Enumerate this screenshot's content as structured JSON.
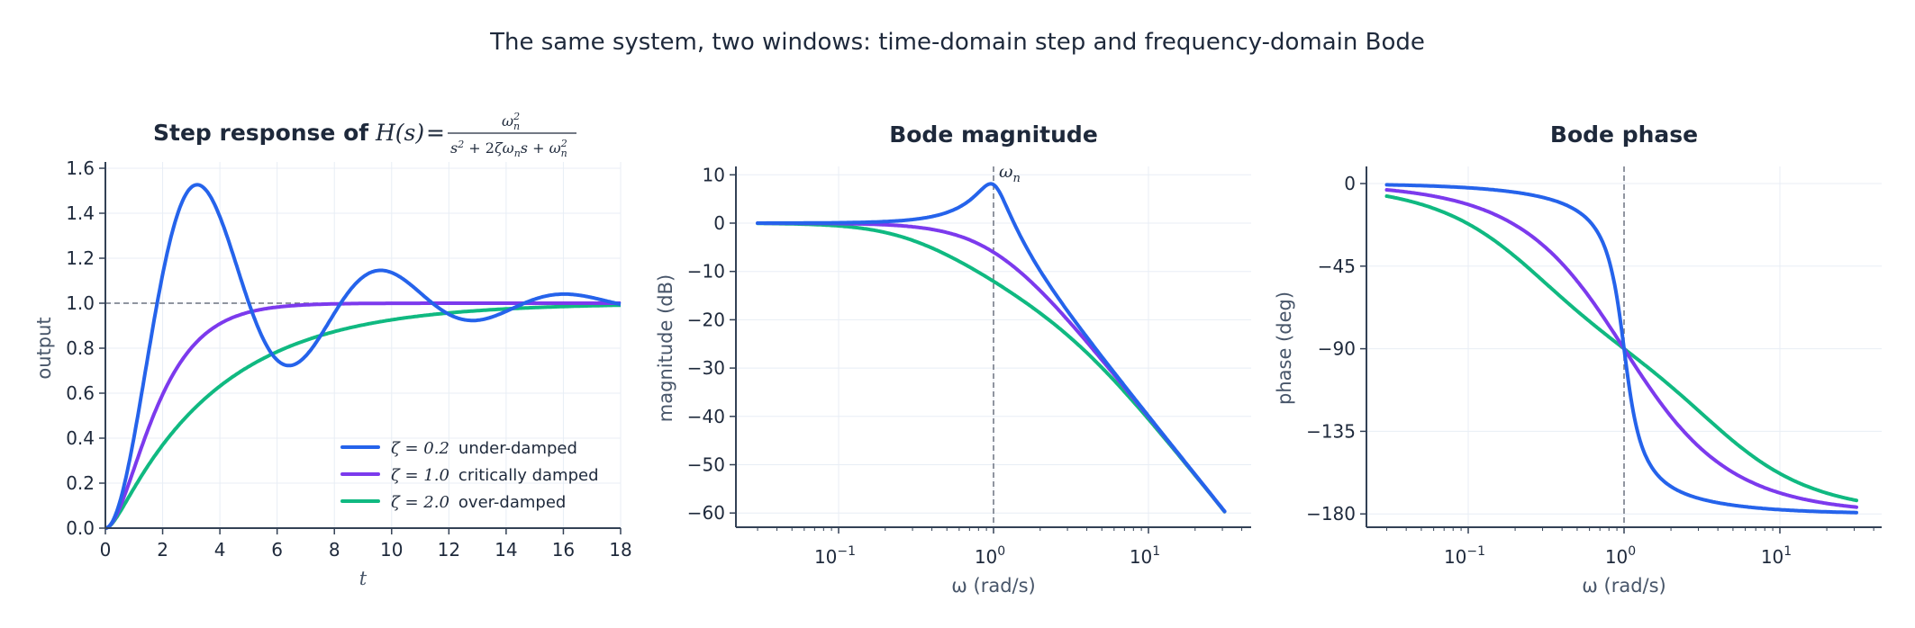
{
  "figure": {
    "suptitle": "The same system, two windows: time-domain step and frequency-domain Bode"
  },
  "colors": {
    "zeta_0_2": "#2563eb",
    "zeta_1_0": "#7c3aed",
    "zeta_2_0": "#10b981",
    "axis": "#334155",
    "grid": "#e8eef5",
    "reference": "#6b7280"
  },
  "chart_data": [
    {
      "type": "line",
      "title": "Step response of H(s) = ωn² / (s² + 2ζωn s + ωn²)",
      "title_prefix": "Step response of ",
      "xlabel": "t",
      "ylabel": "output",
      "xlim": [
        0,
        18
      ],
      "ylim": [
        0,
        1.6
      ],
      "xticks": [
        "0",
        "2",
        "4",
        "6",
        "8",
        "10",
        "12",
        "14",
        "16",
        "18"
      ],
      "yticks": [
        "0.0",
        "0.2",
        "0.4",
        "0.6",
        "0.8",
        "1.0",
        "1.2",
        "1.4",
        "1.6"
      ],
      "grid": true,
      "reference_line": {
        "y": 1.0,
        "style": "dashed"
      },
      "legend_position": "lower right",
      "wn": 1.0,
      "series": [
        {
          "name": "ζ = 0.2  under-damped",
          "zeta": 0.2,
          "zeta_label": "ζ = 0.2",
          "desc": "under-damped",
          "x": [
            0,
            1,
            2,
            3.2,
            4,
            5,
            6.4,
            8,
            9.6,
            11,
            12.8,
            14,
            16,
            18
          ],
          "values": [
            0,
            0.45,
            1.06,
            1.53,
            1.43,
            1.03,
            0.73,
            0.94,
            1.15,
            1.07,
            0.92,
            0.96,
            1.04,
            1.0
          ]
        },
        {
          "name": "ζ = 1.0  critically damped",
          "zeta": 1.0,
          "zeta_label": "ζ = 1.0",
          "desc": "critically damped",
          "x": [
            0,
            1,
            2,
            3,
            4,
            6,
            8,
            10,
            18
          ],
          "values": [
            0,
            0.26,
            0.59,
            0.8,
            0.91,
            0.98,
            1.0,
            1.0,
            1.0
          ]
        },
        {
          "name": "ζ = 2.0  over-damped",
          "zeta": 2.0,
          "zeta_label": "ζ = 2.0",
          "desc": "over-damped",
          "x": [
            0,
            1,
            2,
            4,
            6,
            8,
            10,
            12,
            14,
            18
          ],
          "values": [
            0,
            0.16,
            0.37,
            0.63,
            0.79,
            0.88,
            0.93,
            0.96,
            0.98,
            0.99
          ]
        }
      ]
    },
    {
      "type": "line",
      "title": "Bode magnitude",
      "xlabel": "ω (rad/s)",
      "ylabel": "magnitude (dB)",
      "xscale": "log",
      "xlim": [
        0.03,
        33
      ],
      "ylim": [
        -63,
        12
      ],
      "xticks": [
        "10^-1",
        "10^0",
        "10^1"
      ],
      "yticks": [
        "10",
        "0",
        "−10",
        "−20",
        "−30",
        "−40",
        "−50",
        "−60"
      ],
      "grid": true,
      "annotation": {
        "text": "ωn",
        "x": 1.0,
        "style": "dashed vertical line"
      },
      "series": [
        {
          "name": "ζ = 0.2",
          "x": [
            0.03,
            0.1,
            0.3,
            0.7,
            0.96,
            2,
            5,
            10,
            30
          ],
          "values": [
            0,
            0.1,
            0.8,
            3.4,
            8.1,
            -9.8,
            -27.6,
            -40,
            -59
          ]
        },
        {
          "name": "ζ = 1.0",
          "x": [
            0.03,
            0.1,
            0.3,
            1,
            2,
            5,
            10,
            30
          ],
          "values": [
            0,
            -0.1,
            -0.8,
            -6.0,
            -14,
            -28.3,
            -40.1,
            -59
          ]
        },
        {
          "name": "ζ = 2.0",
          "x": [
            0.03,
            0.1,
            0.3,
            1,
            2,
            5,
            10,
            30
          ],
          "values": [
            0,
            -0.3,
            -2.6,
            -12.3,
            -18.3,
            -30,
            -40.7,
            -59.2
          ]
        }
      ]
    },
    {
      "type": "line",
      "title": "Bode phase",
      "xlabel": "ω (rad/s)",
      "ylabel": "phase (deg)",
      "xscale": "log",
      "xlim": [
        0.03,
        33
      ],
      "ylim": [
        -185,
        8
      ],
      "xticks": [
        "10^-1",
        "10^0",
        "10^1"
      ],
      "yticks": [
        "0",
        "−45",
        "−90",
        "−135",
        "−180"
      ],
      "grid": true,
      "reference_line": {
        "x": 1.0,
        "style": "dashed"
      },
      "series": [
        {
          "name": "ζ = 0.2",
          "x": [
            0.03,
            0.1,
            0.3,
            0.7,
            1,
            1.5,
            3,
            10,
            30
          ],
          "values": [
            -0.7,
            -2.3,
            -7.5,
            -29,
            -90,
            -154,
            -171,
            -177.7,
            -179.2
          ]
        },
        {
          "name": "ζ = 1.0",
          "x": [
            0.03,
            0.1,
            0.3,
            1,
            3,
            10,
            30
          ],
          "values": [
            -3.4,
            -11.4,
            -33.4,
            -90,
            -146.6,
            -168.6,
            -176.6
          ]
        },
        {
          "name": "ζ = 2.0",
          "x": [
            0.03,
            0.1,
            0.3,
            1,
            3,
            10,
            30
          ],
          "values": [
            -6.9,
            -22.0,
            -52.7,
            -90,
            -127.3,
            -158,
            -173
          ]
        }
      ]
    }
  ]
}
